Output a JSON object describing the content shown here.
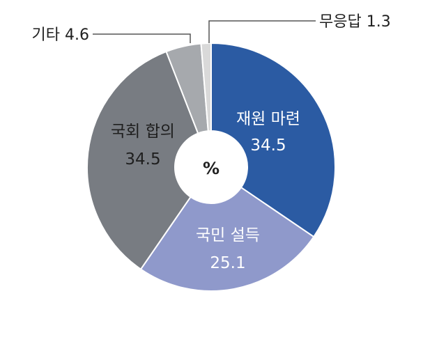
{
  "chart_data": {
    "type": "pie",
    "title": "",
    "center_label": "%",
    "categories": [
      "재원 마련",
      "국민 설득",
      "국회 합의",
      "기타",
      "무응답"
    ],
    "values": [
      34.5,
      25.1,
      34.5,
      4.6,
      1.3
    ],
    "labels": {
      "fund": {
        "name": "재원 마련",
        "value": "34.5"
      },
      "persuade": {
        "name": "국민 설득",
        "value": "25.1"
      },
      "assembly": {
        "name": "국회 합의",
        "value": "34.5"
      },
      "other": {
        "text": "기타 4.6"
      },
      "noanswer": {
        "text": "무응답 1.3"
      }
    },
    "colors": [
      "#2b5ba3",
      "#8f99cb",
      "#787c82",
      "#a6a9ad",
      "#d9d9d9"
    ],
    "legend": "none"
  }
}
